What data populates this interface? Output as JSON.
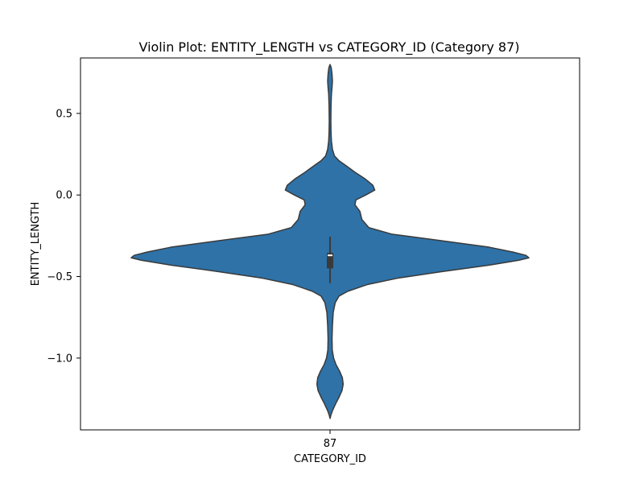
{
  "chart_data": {
    "type": "violin",
    "title": "Violin Plot: ENTITY_LENGTH vs CATEGORY_ID (Category 87)",
    "xlabel": "CATEGORY_ID",
    "ylabel": "ENTITY_LENGTH",
    "categories": [
      "87"
    ],
    "ylim": [
      -1.44,
      0.84
    ],
    "yticks": [
      0.5,
      0.0,
      -0.5,
      -1.0
    ],
    "ytick_labels": [
      "0.5",
      "0.0",
      "−0.5",
      "−1.0"
    ],
    "violins": [
      {
        "category": "87",
        "color": "#2e72a8",
        "max_halfwidth": 1.0,
        "profile": [
          [
            0.8,
            0.0
          ],
          [
            0.78,
            0.006
          ],
          [
            0.74,
            0.01
          ],
          [
            0.7,
            0.012
          ],
          [
            0.66,
            0.01
          ],
          [
            0.62,
            0.007
          ],
          [
            0.55,
            0.005
          ],
          [
            0.45,
            0.004
          ],
          [
            0.38,
            0.005
          ],
          [
            0.33,
            0.007
          ],
          [
            0.28,
            0.012
          ],
          [
            0.24,
            0.022
          ],
          [
            0.21,
            0.045
          ],
          [
            0.18,
            0.08
          ],
          [
            0.14,
            0.125
          ],
          [
            0.1,
            0.175
          ],
          [
            0.06,
            0.215
          ],
          [
            0.03,
            0.225
          ],
          [
            0.0,
            0.18
          ],
          [
            -0.03,
            0.13
          ],
          [
            -0.06,
            0.125
          ],
          [
            -0.1,
            0.15
          ],
          [
            -0.15,
            0.16
          ],
          [
            -0.2,
            0.195
          ],
          [
            -0.24,
            0.31
          ],
          [
            -0.28,
            0.56
          ],
          [
            -0.32,
            0.8
          ],
          [
            -0.35,
            0.92
          ],
          [
            -0.37,
            0.985
          ],
          [
            -0.385,
            1.0
          ],
          [
            -0.4,
            0.95
          ],
          [
            -0.43,
            0.8
          ],
          [
            -0.47,
            0.56
          ],
          [
            -0.51,
            0.34
          ],
          [
            -0.55,
            0.185
          ],
          [
            -0.59,
            0.09
          ],
          [
            -0.62,
            0.045
          ],
          [
            -0.66,
            0.026
          ],
          [
            -0.72,
            0.016
          ],
          [
            -0.8,
            0.012
          ],
          [
            -0.88,
            0.01
          ],
          [
            -0.95,
            0.011
          ],
          [
            -1.0,
            0.018
          ],
          [
            -1.04,
            0.03
          ],
          [
            -1.08,
            0.048
          ],
          [
            -1.12,
            0.062
          ],
          [
            -1.16,
            0.066
          ],
          [
            -1.2,
            0.06
          ],
          [
            -1.24,
            0.045
          ],
          [
            -1.28,
            0.028
          ],
          [
            -1.32,
            0.013
          ],
          [
            -1.35,
            0.004
          ],
          [
            -1.37,
            0.0
          ]
        ],
        "q1": -0.45,
        "median": -0.37,
        "q3": -0.355,
        "whisker_low": -0.54,
        "whisker_high": -0.255
      }
    ],
    "grid": false,
    "legend": "none"
  }
}
